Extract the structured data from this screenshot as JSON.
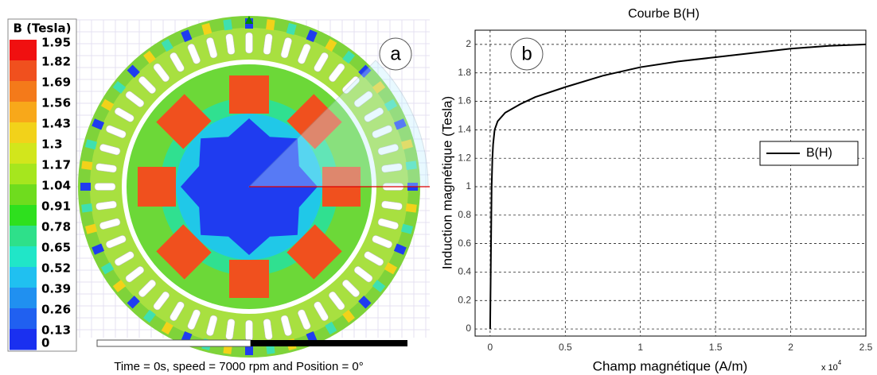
{
  "chart_data": [
    {
      "type": "field-map",
      "colorbar_title": "B (Tesla)",
      "levels": [
        1.95,
        1.82,
        1.69,
        1.56,
        1.43,
        1.3,
        1.17,
        1.04,
        0.91,
        0.78,
        0.65,
        0.52,
        0.39,
        0.26,
        0.13,
        0
      ],
      "colors": [
        "#f01010",
        "#f0501e",
        "#f47a1a",
        "#f8a81a",
        "#f2d21a",
        "#d2e61c",
        "#a6e61e",
        "#6fdc1e",
        "#2ee01e",
        "#2ee08a",
        "#20e6c8",
        "#20c0f0",
        "#2090f0",
        "#2060f0",
        "#1a30f0"
      ],
      "panel_label": "a",
      "caption": "Time = 0s, speed = 7000 rpm and Position = 0°"
    },
    {
      "type": "line",
      "title": "Courbe B(H)",
      "panel_label": "b",
      "x_label": "Champ magnétique (A/m)",
      "y_label": "Induction magnétique  (Tesla)",
      "x_multiplier": "x 10",
      "x_multiplier_exponent": "4",
      "x": [
        0,
        0.005,
        0.01,
        0.015,
        0.02,
        0.03,
        0.05,
        0.1,
        0.2,
        0.3,
        0.5,
        0.75,
        1.0,
        1.25,
        1.5,
        1.75,
        2.0,
        2.25,
        2.5
      ],
      "series": [
        {
          "name": "B(H)",
          "color": "#000000",
          "values": [
            0,
            0.5,
            1.0,
            1.2,
            1.3,
            1.4,
            1.46,
            1.52,
            1.58,
            1.63,
            1.7,
            1.78,
            1.84,
            1.88,
            1.91,
            1.94,
            1.97,
            1.99,
            2.0
          ]
        }
      ],
      "xlim": [
        -0.1,
        2.5
      ],
      "ylim": [
        -0.05,
        2.1
      ],
      "xticks": [
        0,
        0.5,
        1,
        1.5,
        2,
        2.5
      ],
      "yticks": [
        0,
        0.2,
        0.4,
        0.6,
        0.8,
        1,
        1.2,
        1.4,
        1.6,
        1.8,
        2
      ],
      "grid": true,
      "legend": "upper right"
    }
  ]
}
